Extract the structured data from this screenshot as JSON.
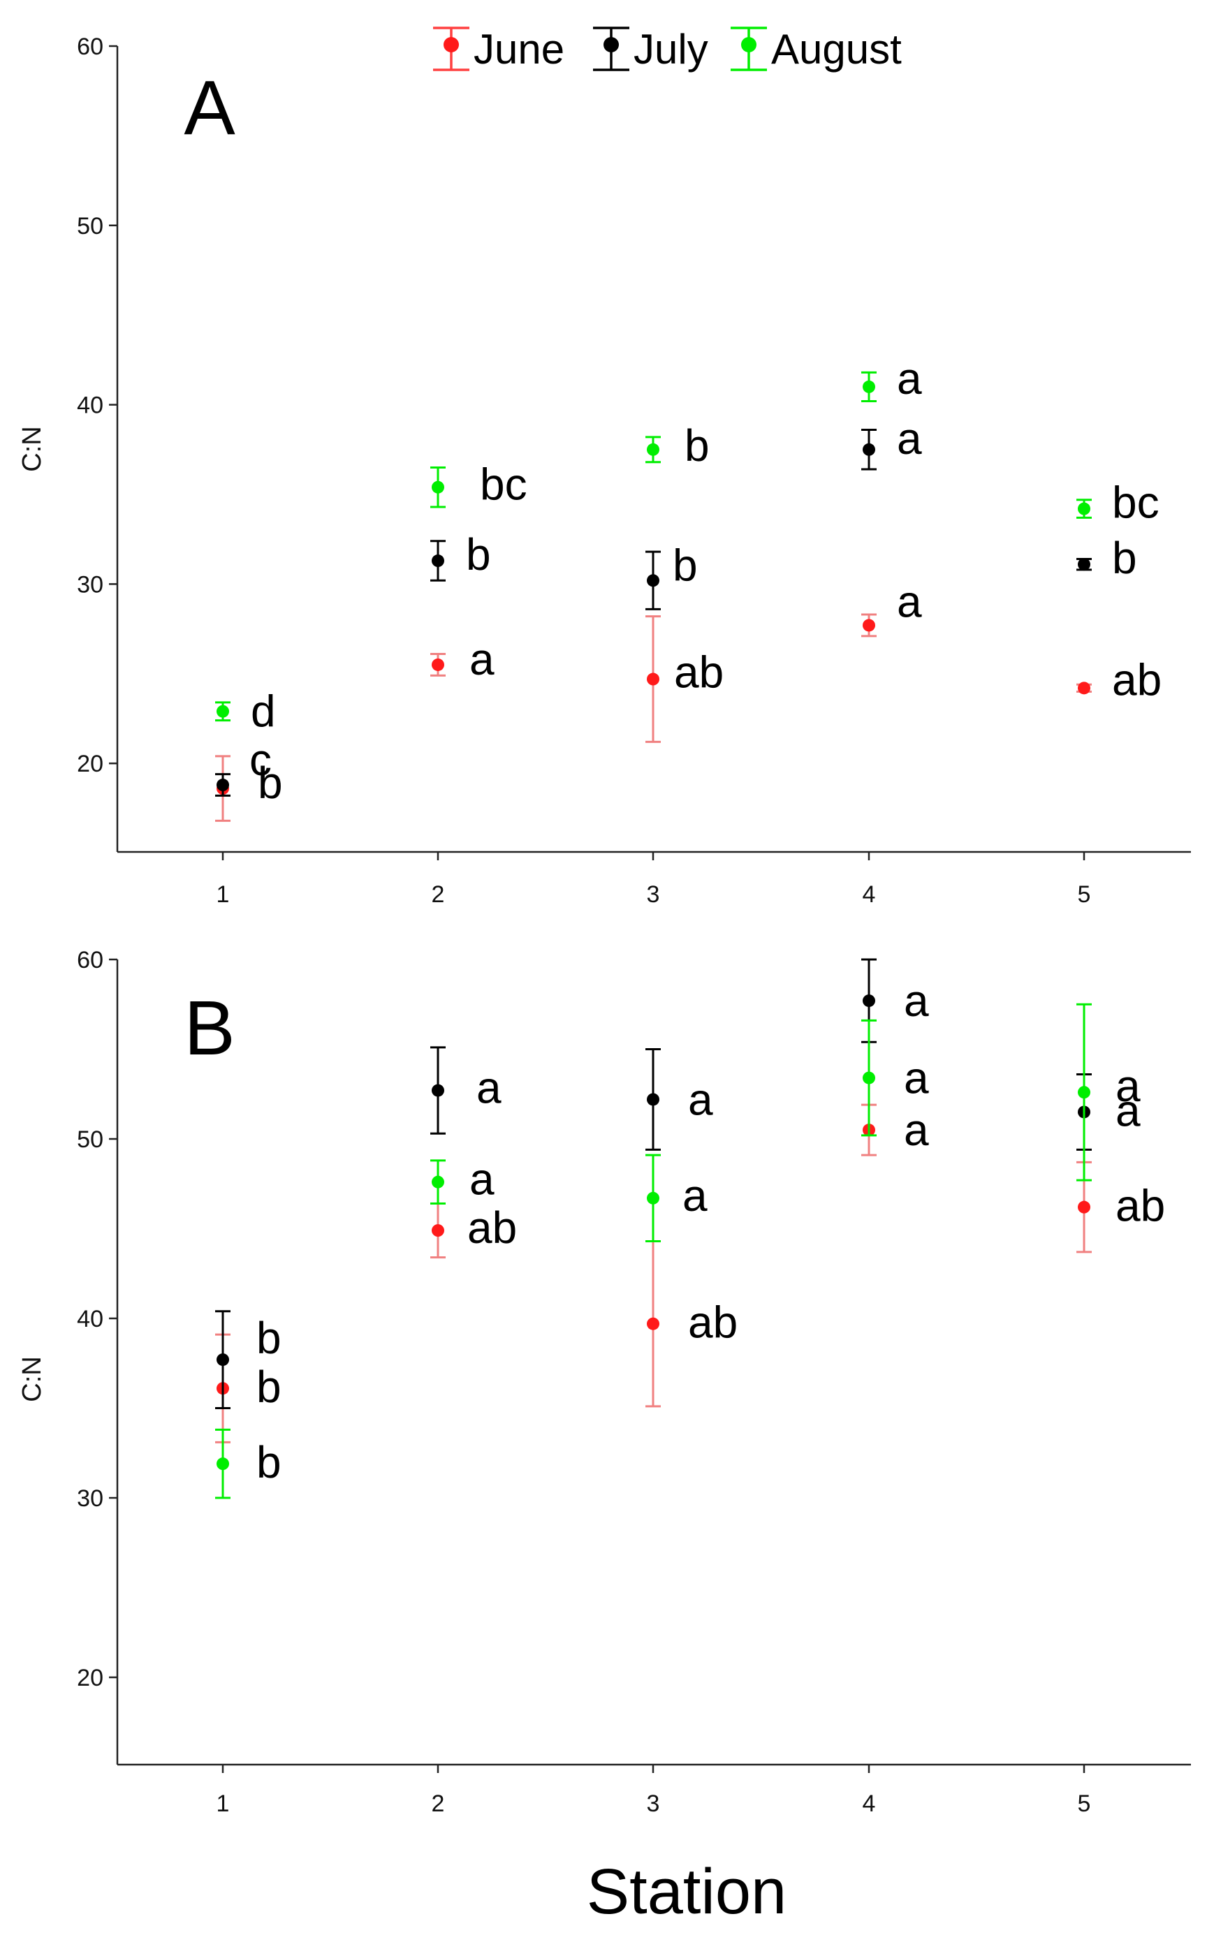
{
  "chart_data": [
    {
      "type": "scatter",
      "panel_label": "A",
      "ylabel": "C:N",
      "xlabel": "",
      "categories": [
        "1",
        "2",
        "3",
        "4",
        "5"
      ],
      "ylim": [
        15,
        60
      ],
      "yticks": [
        20,
        30,
        40,
        50,
        60
      ],
      "grid": false,
      "legend": {
        "placement": "top-center",
        "entries": [
          "June",
          "July",
          "August"
        ]
      },
      "series": [
        {
          "name": "June",
          "color": "#ff1a1a",
          "error_color": "#f08080",
          "values": [
            18.6,
            25.5,
            24.7,
            27.7,
            24.2
          ],
          "errors": [
            1.8,
            0.6,
            3.5,
            0.6,
            0.2
          ],
          "labels": [
            "b",
            "a",
            "ab",
            "a",
            "ab"
          ]
        },
        {
          "name": "July",
          "color": "#000000",
          "error_color": "#000000",
          "values": [
            18.8,
            31.3,
            30.2,
            37.5,
            31.1
          ],
          "errors": [
            0.6,
            1.1,
            1.6,
            1.1,
            0.3
          ],
          "labels": [
            "c",
            "b",
            "b",
            "a",
            "b"
          ]
        },
        {
          "name": "August",
          "color": "#00ee00",
          "error_color": "#00ee00",
          "values": [
            22.9,
            35.4,
            37.5,
            41.0,
            34.2
          ],
          "errors": [
            0.5,
            1.1,
            0.7,
            0.8,
            0.5
          ],
          "labels": [
            "d",
            "bc",
            "b",
            "a",
            "bc"
          ]
        }
      ]
    },
    {
      "type": "scatter",
      "panel_label": "B",
      "ylabel": "C:N",
      "xlabel": "Station",
      "categories": [
        "1",
        "2",
        "3",
        "4",
        "5"
      ],
      "ylim": [
        10,
        60
      ],
      "yticks": [
        20,
        30,
        40,
        50,
        60
      ],
      "grid": false,
      "series": [
        {
          "name": "June",
          "color": "#ff1a1a",
          "error_color": "#f08080",
          "values": [
            36.1,
            44.9,
            39.7,
            50.5,
            46.2
          ],
          "errors": [
            3.0,
            1.5,
            4.6,
            1.4,
            2.5
          ],
          "labels": [
            "b",
            "ab",
            "ab",
            "a",
            "ab"
          ]
        },
        {
          "name": "July",
          "color": "#000000",
          "error_color": "#000000",
          "values": [
            37.7,
            52.7,
            52.2,
            57.7,
            51.5
          ],
          "errors": [
            2.7,
            2.4,
            2.8,
            2.3,
            2.1
          ],
          "labels": [
            "b",
            "a",
            "a",
            "a",
            "a"
          ]
        },
        {
          "name": "August",
          "color": "#00ee00",
          "error_color": "#00ee00",
          "values": [
            31.9,
            47.6,
            46.7,
            53.4,
            52.6
          ],
          "errors": [
            1.9,
            1.2,
            2.4,
            3.2,
            4.9
          ],
          "labels": [
            "b",
            "a",
            "a",
            "a",
            "a"
          ]
        }
      ]
    }
  ]
}
